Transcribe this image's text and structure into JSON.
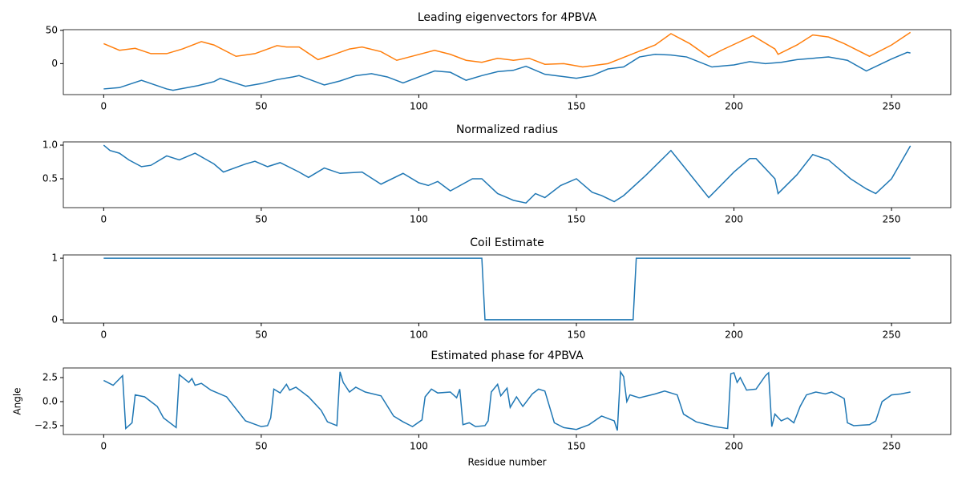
{
  "chart_data": [
    {
      "type": "line",
      "title": "Leading eigenvectors for 4PBVA",
      "xlim": [
        -12.8,
        268.8
      ],
      "ylim": [
        -46.5,
        51
      ],
      "xticks": [
        0,
        50,
        100,
        150,
        200,
        250
      ],
      "yticks": [
        0,
        50
      ],
      "series": [
        {
          "color": "#1f77b4",
          "x": [
            0,
            5,
            12,
            20,
            22,
            30,
            35,
            37,
            45,
            50,
            55,
            60,
            62,
            70,
            75,
            80,
            85,
            90,
            95,
            100,
            105,
            110,
            115,
            120,
            125,
            130,
            134,
            140,
            150,
            155,
            160,
            165,
            170,
            175,
            180,
            185,
            193,
            200,
            205,
            210,
            215,
            220,
            225,
            230,
            236,
            242,
            250,
            255,
            256
          ],
          "values": [
            -38,
            -36,
            -25,
            -38,
            -40,
            -33,
            -27,
            -22,
            -34,
            -30,
            -24,
            -20,
            -18,
            -32,
            -26,
            -18,
            -15,
            -20,
            -29,
            -20,
            -11,
            -13,
            -25,
            -18,
            -12,
            -10,
            -4,
            -16,
            -22,
            -18,
            -8,
            -5,
            10,
            14,
            13,
            10,
            -5,
            -2,
            3,
            0,
            2,
            6,
            8,
            10,
            5,
            -11,
            7,
            17,
            16
          ]
        },
        {
          "color": "#ff7f0e",
          "x": [
            0,
            5,
            10,
            15,
            20,
            25,
            31,
            35,
            42,
            48,
            55,
            58,
            62,
            68,
            72,
            78,
            82,
            88,
            93,
            97,
            105,
            110,
            115,
            120,
            125,
            130,
            135,
            140,
            146,
            152,
            160,
            168,
            175,
            180,
            186,
            192,
            196,
            206,
            213,
            214,
            220,
            225,
            230,
            235,
            243,
            250,
            256
          ],
          "values": [
            30,
            20,
            23,
            15,
            15,
            22,
            33,
            28,
            11,
            15,
            27,
            25,
            25,
            6,
            12,
            22,
            25,
            18,
            5,
            10,
            20,
            14,
            5,
            2,
            8,
            5,
            8,
            -1,
            0,
            -5,
            0,
            15,
            28,
            45,
            30,
            10,
            20,
            42,
            22,
            14,
            28,
            43,
            40,
            30,
            11,
            28,
            47
          ]
        }
      ]
    },
    {
      "type": "line",
      "title": "Normalized radius",
      "xlim": [
        -12.8,
        268.8
      ],
      "ylim": [
        0.071,
        1.048
      ],
      "xticks": [
        0,
        50,
        100,
        150,
        200,
        250
      ],
      "yticks": [
        {
          "value": 0.5,
          "label": "0.5"
        },
        {
          "value": 1,
          "label": "1.0"
        }
      ],
      "series": [
        {
          "color": "#1f77b4",
          "x": [
            0,
            2,
            5,
            8,
            12,
            15,
            20,
            24,
            29,
            35,
            38,
            45,
            48,
            52,
            56,
            62,
            65,
            70,
            75,
            82,
            88,
            95,
            100,
            103,
            106,
            110,
            117,
            120,
            125,
            130,
            134,
            137,
            140,
            145,
            150,
            155,
            158,
            162,
            165,
            172,
            180,
            192,
            200,
            205,
            207,
            213,
            214,
            220,
            225,
            230,
            237,
            242,
            245,
            250,
            256
          ],
          "values": [
            1.0,
            0.92,
            0.88,
            0.78,
            0.68,
            0.7,
            0.84,
            0.78,
            0.88,
            0.72,
            0.6,
            0.72,
            0.76,
            0.68,
            0.74,
            0.6,
            0.52,
            0.66,
            0.58,
            0.6,
            0.42,
            0.58,
            0.44,
            0.4,
            0.46,
            0.32,
            0.5,
            0.5,
            0.28,
            0.18,
            0.14,
            0.28,
            0.22,
            0.4,
            0.5,
            0.3,
            0.25,
            0.16,
            0.25,
            0.55,
            0.92,
            0.22,
            0.6,
            0.8,
            0.8,
            0.5,
            0.28,
            0.56,
            0.86,
            0.78,
            0.5,
            0.35,
            0.28,
            0.5,
            0.99
          ]
        }
      ]
    },
    {
      "type": "line",
      "title": "Coil Estimate",
      "xlim": [
        -12.8,
        268.8
      ],
      "ylim": [
        -0.053,
        1.053
      ],
      "xticks": [
        0,
        50,
        100,
        150,
        200,
        250
      ],
      "yticks": [
        0,
        1
      ],
      "series": [
        {
          "color": "#1f77b4",
          "x": [
            0,
            120,
            121,
            168,
            169,
            256
          ],
          "values": [
            1,
            1,
            0,
            0,
            1,
            1
          ]
        }
      ]
    },
    {
      "type": "line",
      "title": "Estimated phase for 4PBVA",
      "ylabel": "Angle",
      "xlabel": "Residue number",
      "xlim": [
        -12.8,
        268.8
      ],
      "ylim": [
        -3.42,
        3.5
      ],
      "xticks": [
        0,
        50,
        100,
        150,
        200,
        250
      ],
      "yticks": [
        {
          "value": -2.5,
          "label": "−2.5"
        },
        {
          "value": 0,
          "label": "0.0"
        },
        {
          "value": 2.5,
          "label": "2.5"
        }
      ],
      "series": [
        {
          "color": "#1f77b4",
          "x": [
            0,
            3,
            6,
            7,
            9,
            10,
            13,
            17,
            19,
            23,
            24,
            27,
            28,
            29,
            31,
            34,
            39,
            45,
            50,
            52,
            53,
            54,
            56,
            58,
            59,
            61,
            65,
            69,
            71,
            74,
            75,
            76,
            78,
            80,
            83,
            88,
            92,
            95,
            98,
            101,
            102,
            104,
            106,
            110,
            112,
            113,
            114,
            116,
            118,
            121,
            122,
            123,
            125,
            126,
            128,
            129,
            131,
            133,
            136,
            138,
            140,
            143,
            146,
            150,
            154,
            158,
            162,
            163,
            164,
            165,
            166,
            167,
            170,
            175,
            178,
            182,
            184,
            188,
            194,
            198,
            199,
            200,
            201,
            202,
            204,
            207,
            210,
            211,
            212,
            213,
            215,
            217,
            219,
            221,
            223,
            226,
            229,
            231,
            234,
            235,
            236,
            238,
            243,
            245,
            247,
            250,
            253,
            256
          ],
          "values": [
            2.2,
            1.7,
            2.7,
            -2.8,
            -2.2,
            0.7,
            0.5,
            -0.5,
            -1.7,
            -2.7,
            2.8,
            2.0,
            2.4,
            1.7,
            1.9,
            1.2,
            0.5,
            -2.0,
            -2.6,
            -2.5,
            -1.7,
            1.3,
            0.9,
            1.8,
            1.2,
            1.5,
            0.5,
            -0.9,
            -2.1,
            -2.5,
            3.1,
            2.0,
            1.0,
            1.5,
            1.0,
            0.6,
            -1.5,
            -2.1,
            -2.6,
            -1.9,
            0.5,
            1.3,
            0.9,
            1.0,
            0.4,
            1.3,
            -2.4,
            -2.2,
            -2.6,
            -2.5,
            -2.0,
            1.0,
            1.8,
            0.6,
            1.4,
            -0.6,
            0.5,
            -0.5,
            0.8,
            1.3,
            1.1,
            -2.2,
            -2.7,
            -2.9,
            -2.4,
            -1.5,
            -2.0,
            -3.0,
            3.1,
            2.6,
            0.0,
            0.7,
            0.4,
            0.8,
            1.1,
            0.7,
            -1.3,
            -2.1,
            -2.6,
            -2.8,
            2.9,
            3.0,
            2.0,
            2.5,
            1.2,
            1.3,
            2.7,
            3.0,
            -2.6,
            -1.3,
            -2.0,
            -1.7,
            -2.2,
            -0.5,
            0.7,
            1.0,
            0.8,
            1.0,
            0.5,
            0.3,
            -2.2,
            -2.5,
            -2.4,
            -2.0,
            0.0,
            0.7,
            0.8,
            1.0
          ]
        }
      ]
    }
  ]
}
